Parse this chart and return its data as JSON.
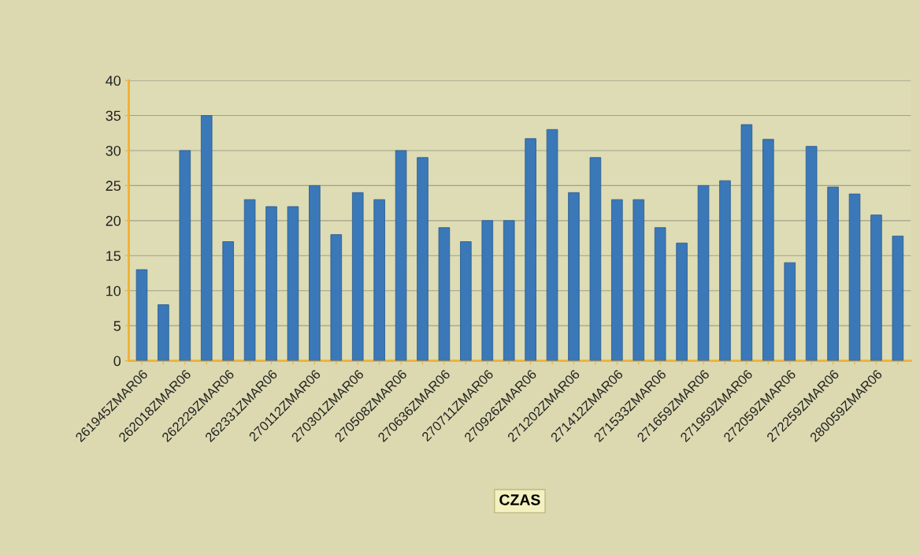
{
  "chart_data": {
    "type": "bar",
    "xlabel": "CZAS",
    "categories": [
      "261945ZMAR06",
      null,
      "262018ZMAR06",
      null,
      "262229ZMAR06",
      null,
      "262331ZMAR06",
      null,
      "270112ZMAR06",
      null,
      "270301ZMAR06",
      null,
      "270508ZMAR06",
      null,
      "270636ZMAR06",
      null,
      "270711ZMAR06",
      null,
      "270926ZMAR06",
      null,
      "271202ZMAR06",
      null,
      "271412ZMAR06",
      null,
      "271533ZMAR06",
      null,
      "271659ZMAR06",
      null,
      "271959ZMAR06",
      null,
      "272059ZMAR06",
      null,
      "272259ZMAR06",
      null,
      "280059ZMAR06",
      null
    ],
    "values": [
      13,
      8,
      30,
      35,
      17,
      23,
      22,
      22,
      25,
      18,
      24,
      23,
      30,
      29,
      19,
      17,
      20,
      20,
      31.7,
      33,
      24,
      29,
      23,
      23,
      19,
      16.8,
      25,
      25.7,
      33.7,
      31.6,
      14,
      30.6,
      24.8,
      23.8,
      20.8,
      17.8
    ],
    "color": "#3a78b8",
    "ylim": [
      0,
      40
    ],
    "yticks": [
      0,
      5,
      10,
      15,
      20,
      25,
      30,
      35,
      40
    ],
    "grid": "y"
  }
}
